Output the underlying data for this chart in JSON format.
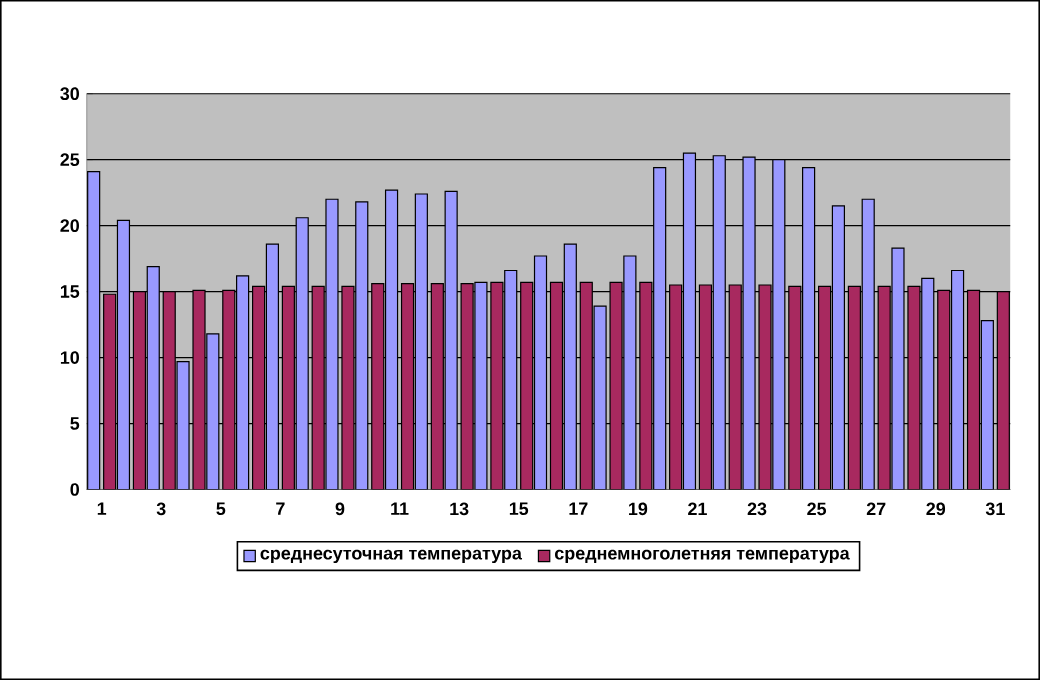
{
  "chart_data": {
    "type": "bar",
    "categories": [
      "1",
      null,
      "3",
      null,
      "5",
      null,
      "7",
      null,
      "9",
      null,
      "11",
      null,
      "13",
      null,
      "15",
      null,
      "17",
      null,
      "19",
      null,
      "21",
      null,
      "23",
      null,
      "25",
      null,
      "27",
      null,
      "29",
      null,
      "31"
    ],
    "series": [
      {
        "name": "среднесуточная температура",
        "color": "#9999ff",
        "values": [
          24.1,
          20.4,
          16.9,
          9.7,
          11.8,
          16.2,
          18.6,
          20.6,
          22.0,
          21.8,
          22.7,
          22.4,
          22.6,
          15.7,
          16.6,
          17.7,
          18.6,
          13.9,
          17.7,
          24.4,
          25.5,
          25.3,
          25.2,
          25.0,
          24.4,
          21.5,
          22.0,
          18.3,
          16.0,
          16.6,
          12.8
        ]
      },
      {
        "name": "среднемноголетняя температура",
        "color": "#a8295f",
        "values": [
          14.8,
          15.0,
          15.0,
          15.1,
          15.1,
          15.4,
          15.4,
          15.4,
          15.4,
          15.6,
          15.6,
          15.6,
          15.6,
          15.7,
          15.7,
          15.7,
          15.7,
          15.7,
          15.7,
          15.5,
          15.5,
          15.5,
          15.5,
          15.4,
          15.4,
          15.4,
          15.4,
          15.4,
          15.1,
          15.1,
          15.0
        ]
      }
    ],
    "ylim": [
      0,
      30
    ],
    "yticks": [
      0,
      5,
      10,
      15,
      20,
      25,
      30
    ],
    "grid": "y",
    "legend": "bottom"
  }
}
